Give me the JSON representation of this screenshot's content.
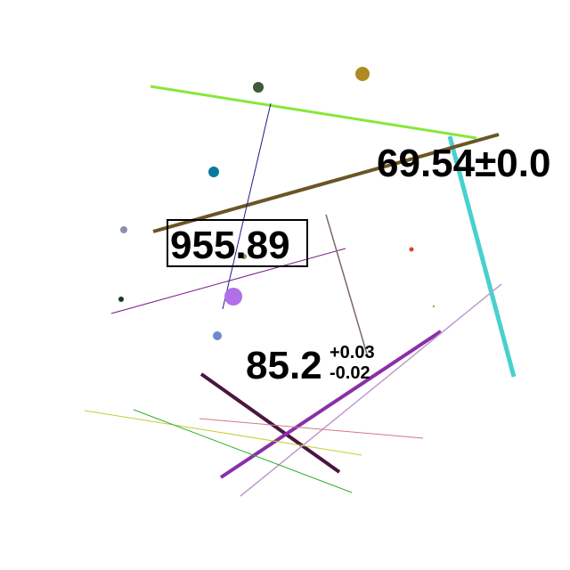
{
  "labels": {
    "value_1": "69.54±0.0",
    "value_2": "955.89",
    "value_3_main": "85.2",
    "value_3_plus": "+0.03",
    "value_3_minus": "-0.02"
  },
  "colors": {
    "lime": "#86e83a",
    "cyan": "#48d0d0",
    "olive_brown": "#6b5526",
    "navy": "#1c1c8c",
    "purple_line": "#7a1a8a",
    "gray_brown": "#7a6a62",
    "plum_dark": "#4a1640",
    "violet": "#8a2fa8",
    "lavender": "#c09ad0",
    "pink": "#d07a88",
    "yellow_olive": "#c8cc30",
    "green": "#2cb02c",
    "dot_dark_green": "#3e5a3a",
    "dot_gold": "#b08a20",
    "dot_teal": "#0a7a9a",
    "dot_slate": "#8a90b0",
    "dot_olive": "#8a9a4a",
    "dot_black_green": "#1a3a1a",
    "dot_purple": "#b070e8",
    "dot_blue": "#7088cc",
    "dot_red": "#e04020",
    "dot_lime": "#70c040"
  }
}
